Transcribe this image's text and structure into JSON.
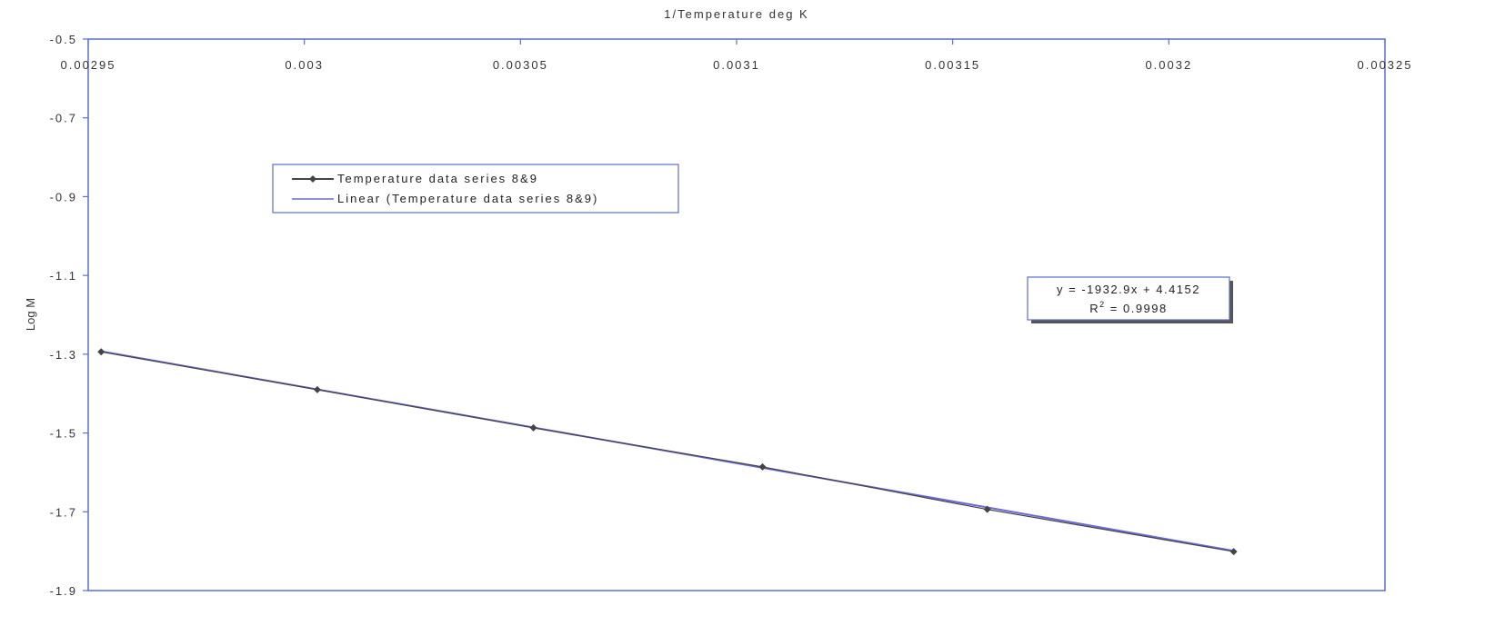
{
  "chart_data": {
    "type": "line",
    "title": "1/Temperature deg K",
    "xlabel": "1/Temperature deg K",
    "ylabel": "Log M",
    "x_axis_position": "top",
    "xlim": [
      0.00295,
      0.00325
    ],
    "ylim": [
      -1.9,
      -0.5
    ],
    "x_ticks": [
      "0.00295",
      "0.003",
      "0.00305",
      "0.0031",
      "0.00315",
      "0.0032",
      "0.00325"
    ],
    "x_tick_values": [
      0.00295,
      0.003,
      0.00305,
      0.0031,
      0.00315,
      0.0032,
      0.00325
    ],
    "y_ticks": [
      "-0.5",
      "-0.7",
      "-0.9",
      "-1.1",
      "-1.3",
      "-1.5",
      "-1.7",
      "-1.9"
    ],
    "y_tick_values": [
      -0.5,
      -0.7,
      -0.9,
      -1.1,
      -1.3,
      -1.5,
      -1.7,
      -1.9
    ],
    "grid": false,
    "legend_position": "upper-left",
    "colors": {
      "data": "#444444",
      "trend": "#6b6bd6",
      "frame": "#5b6fd1"
    },
    "series": [
      {
        "name": "Temperature data series 8&9",
        "x": [
          0.002953,
          0.003003,
          0.003053,
          0.003106,
          0.003158,
          0.003215
        ],
        "y": [
          -1.294,
          -1.39,
          -1.487,
          -1.586,
          -1.694,
          -1.801
        ]
      }
    ],
    "trendline": {
      "name": "Linear (Temperature data series 8&9)",
      "equation": "y = -1932.9x + 4.4152",
      "r2_label": "R",
      "r2_sup": "2",
      "r2_value": " = 0.9998",
      "slope": -1932.9,
      "intercept": 4.4152
    }
  }
}
